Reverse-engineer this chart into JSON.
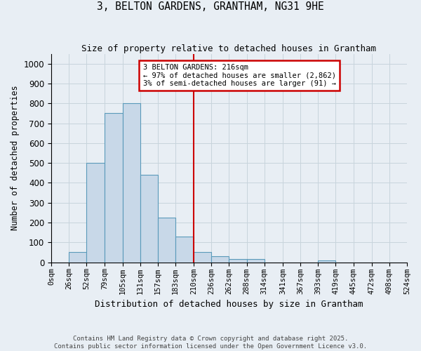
{
  "title": "3, BELTON GARDENS, GRANTHAM, NG31 9HE",
  "subtitle": "Size of property relative to detached houses in Grantham",
  "xlabel": "Distribution of detached houses by size in Grantham",
  "ylabel": "Number of detached properties",
  "footer_line1": "Contains HM Land Registry data © Crown copyright and database right 2025.",
  "footer_line2": "Contains public sector information licensed under the Open Government Licence v3.0.",
  "bin_edges": [
    0,
    26,
    52,
    79,
    105,
    131,
    157,
    183,
    210,
    236,
    262,
    288,
    314,
    341,
    367,
    393,
    419,
    445,
    472,
    498,
    524
  ],
  "bar_heights": [
    0,
    50,
    500,
    750,
    800,
    440,
    225,
    130,
    50,
    30,
    15,
    15,
    0,
    0,
    0,
    10,
    0,
    0,
    0,
    0
  ],
  "bar_color": "#c8d8e8",
  "bar_edgecolor": "#5a9aba",
  "reference_line_x": 210,
  "reference_line_color": "#cc0000",
  "ylim": [
    0,
    1050
  ],
  "yticks": [
    0,
    100,
    200,
    300,
    400,
    500,
    600,
    700,
    800,
    900,
    1000
  ],
  "annotation_text": "3 BELTON GARDENS: 216sqm\n← 97% of detached houses are smaller (2,862)\n3% of semi-detached houses are larger (91) →",
  "annotation_box_color": "#ffffff",
  "annotation_box_edgecolor": "#cc0000",
  "grid_color": "#c8d4dc",
  "background_color": "#e8eef4"
}
